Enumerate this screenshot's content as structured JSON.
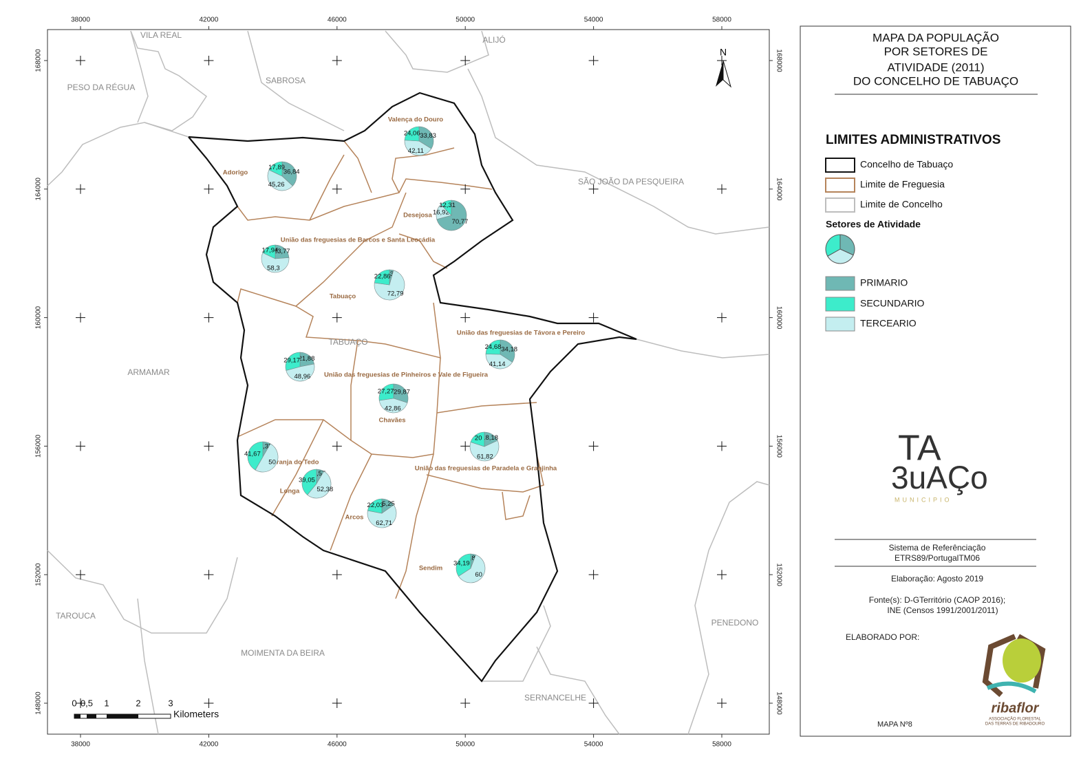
{
  "map": {
    "x_ticks": [
      38000,
      42000,
      46000,
      50000,
      54000,
      58000
    ],
    "y_ticks": [
      148000,
      152000,
      156000,
      160000,
      164000,
      168000
    ],
    "north": "N",
    "municipality_label": "TABUAÇO",
    "neighbors": [
      "VILA REAL",
      "ALIJÓ",
      "PESO DA RÉGUA",
      "SABROSA",
      "SÃO JOÃO DA PESQUEIRA",
      "ARMAMAR",
      "TAROUCA",
      "MOIMENTA DA BEIRA",
      "SERNANCELHE",
      "PENEDONO"
    ],
    "parishes": [
      {
        "name": "Valença do Douro",
        "values": [
          33.83,
          24.06,
          42.11
        ],
        "value_labels": [
          "33,83",
          "24,06",
          "42,11"
        ]
      },
      {
        "name": "Adorigo",
        "values": [
          36.84,
          17.89,
          45.26
        ],
        "value_labels": [
          "36,84",
          "17,89",
          "45,26"
        ]
      },
      {
        "name": "Desejosa",
        "values": [
          70.77,
          12.31,
          16.92
        ],
        "value_labels": [
          "70,77",
          "12,31",
          "16,92"
        ]
      },
      {
        "name": "União das freguesias de Barcos e Santa Leocádia",
        "values": [
          23.77,
          17.94,
          58.3
        ],
        "value_labels": [
          "23,77",
          "17,94",
          "58,3"
        ]
      },
      {
        "name": "Tabuaço",
        "values": [
          4.35,
          22.86,
          72.79
        ],
        "value_labels": [
          "4,35",
          "22,86",
          "72,79"
        ]
      },
      {
        "name": "União das freguesias de Távora e Pereiro",
        "values": [
          34.18,
          24.68,
          41.14
        ],
        "value_labels": [
          "34,18",
          "24,68",
          "41,14"
        ]
      },
      {
        "name": "União das freguesias de Pinheiros e Vale de Figueira",
        "values": [
          21.88,
          29.17,
          48.96
        ],
        "value_labels": [
          "21,88",
          "29,17",
          "48,96"
        ]
      },
      {
        "name": "Chavães",
        "values": [
          29.87,
          27.27,
          42.86
        ],
        "value_labels": [
          "29,87",
          "27,27",
          "42,86"
        ]
      },
      {
        "name": "União das freguesias de Paradela e Granjinha",
        "values": [
          18.18,
          20,
          61.82
        ],
        "value_labels": [
          "18,18",
          "20",
          "61,82"
        ]
      },
      {
        "name": "Granja do Tedo",
        "values": [
          8.33,
          41.67,
          50
        ],
        "value_labels": [
          "8,33",
          "41,67",
          "50"
        ]
      },
      {
        "name": "Longa",
        "values": [
          8.57,
          39.05,
          52.38
        ],
        "value_labels": [
          "8,57",
          "39,05",
          "52,38"
        ]
      },
      {
        "name": "Arcos",
        "values": [
          15.25,
          22.03,
          62.71
        ],
        "value_labels": [
          "15,25",
          "22,03",
          "62,71"
        ]
      },
      {
        "name": "Sendim",
        "values": [
          5.81,
          34.19,
          60
        ],
        "value_labels": [
          "5,81",
          "34,19",
          "60"
        ]
      }
    ],
    "scale": {
      "labels": [
        "0",
        "0,5",
        "1",
        "2",
        "3"
      ],
      "unit": "Kilometers"
    }
  },
  "legend": {
    "title": [
      "MAPA DA POPULAÇÃO",
      "POR SETORES DE",
      "ATIVIDADE (2011)",
      "DO CONCELHO DE TABUAÇO"
    ],
    "limits_title": "LIMITES ADMINISTRATIVOS",
    "limits": [
      "Concelho de Tabuaço",
      "Limite de Freguesia",
      "Limite de Concelho"
    ],
    "sectors_title": "Setores de Atividade",
    "sectors": [
      {
        "label": "PRIMARIO",
        "color": "#6fb8b4"
      },
      {
        "label": "SECUNDARIO",
        "color": "#3deccb"
      },
      {
        "label": "TERCEARIO",
        "color": "#c4eef0"
      }
    ],
    "logo": {
      "top": "TA",
      "bottom": "3uAÇo",
      "sub": "MUNICIPIO"
    },
    "reference": [
      "Sistema de Referênciação",
      "ETRS89/PortugalTM06"
    ],
    "elaboration": "Elaboração: Agosto 2019",
    "sources": [
      "Fonte(s): D-GTerritório (CAOP 2016);",
      "INE (Censos 1991/2001/2011)"
    ],
    "made_by": "ELABORADO POR:",
    "ribaflor": {
      "name": "ribaflor",
      "line1": "ASSOCIAÇÃO FLORESTAL",
      "line2": "DAS TERRAS DE RIBADOURO"
    },
    "map_number": "MAPA Nº8"
  }
}
